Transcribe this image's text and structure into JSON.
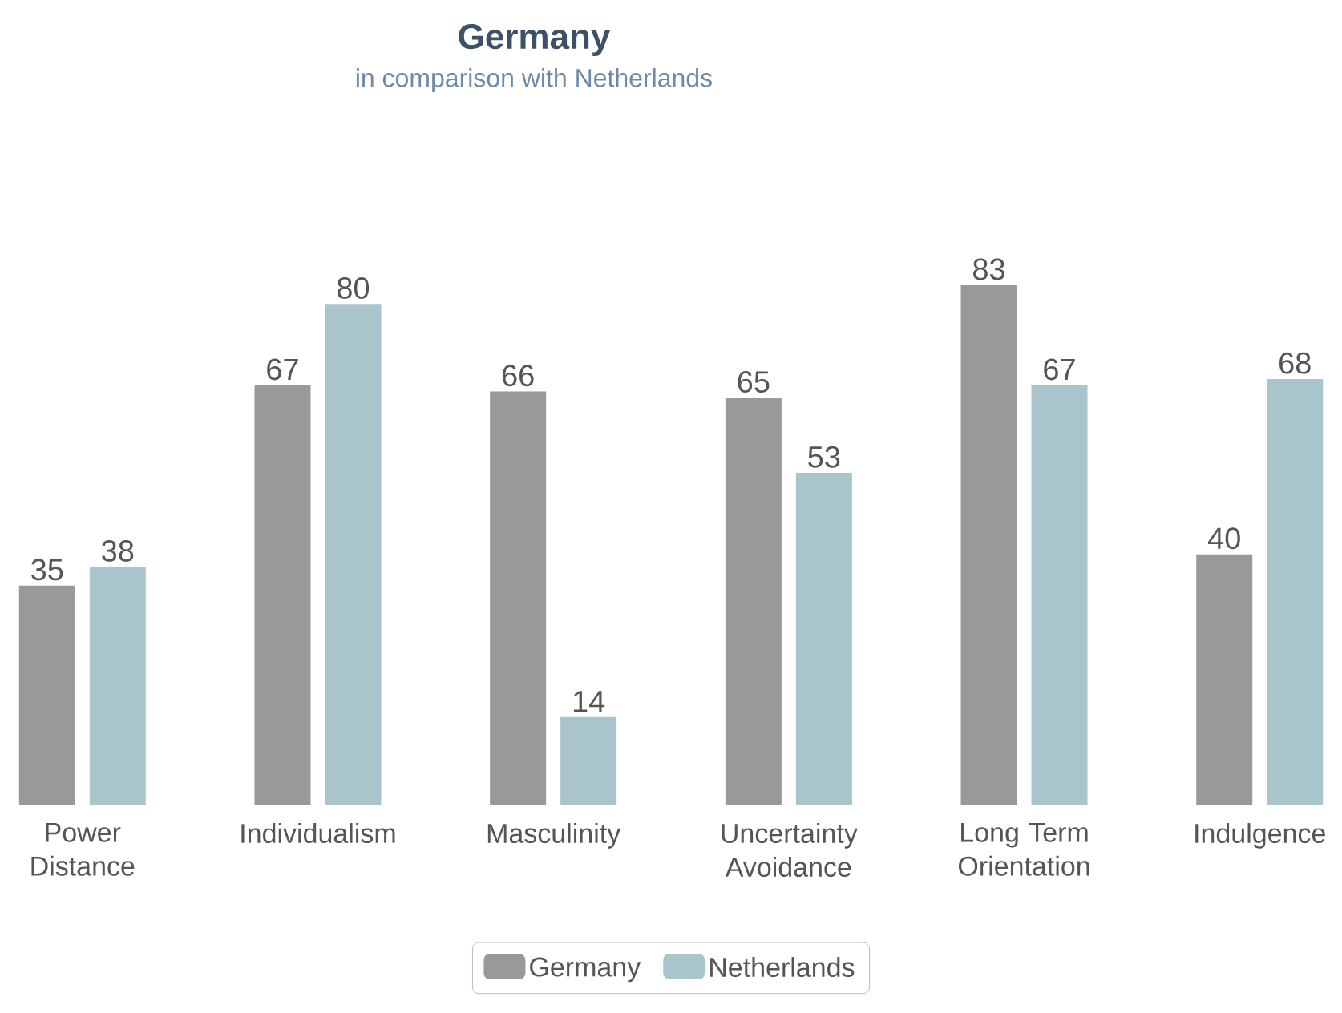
{
  "chart_data": {
    "type": "bar",
    "title": "Germany",
    "subtitle": "in comparison with Netherlands",
    "categories": [
      "Power Distance",
      "Individualism",
      "Masculinity",
      "Uncertainty Avoidance",
      "Long Term Orientation",
      "Indulgence"
    ],
    "series": [
      {
        "name": "Germany",
        "color": "#9a9899",
        "values": [
          35,
          67,
          66,
          65,
          83,
          40
        ]
      },
      {
        "name": "Netherlands",
        "color": "#a9c5cb",
        "values": [
          38,
          80,
          14,
          53,
          67,
          68
        ]
      }
    ],
    "data_labels": true,
    "legend": "bottom",
    "tick_labels": "x",
    "grid": false
  }
}
